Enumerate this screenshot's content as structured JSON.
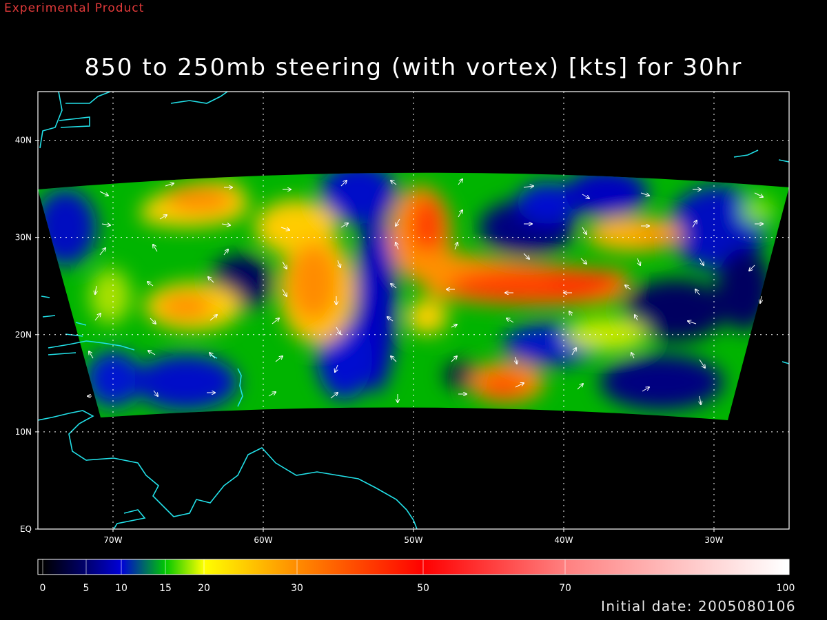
{
  "header": {
    "product_tag": "Experimental Product"
  },
  "map": {
    "title": "850 to 250mb steering (with vortex) [kts] for 30hr",
    "lat_labels": [
      "40N",
      "30N",
      "20N",
      "10N",
      "EQ"
    ],
    "lon_labels": [
      "70W",
      "60W",
      "50W",
      "40W",
      "30W"
    ],
    "lat_values": [
      40,
      30,
      20,
      10,
      0
    ],
    "lon_values": [
      -70,
      -60,
      -50,
      -40,
      -30
    ],
    "extent": {
      "lon_min": -75,
      "lon_max": -25,
      "lat_min": 0,
      "lat_max": 45
    },
    "grid": true,
    "coastline_color": "#22e0e8"
  },
  "colorbar": {
    "tick_labels": [
      "0",
      "5",
      "10",
      "15",
      "20",
      "30",
      "50",
      "70",
      "100"
    ],
    "tick_values": [
      0,
      5,
      10,
      15,
      20,
      30,
      50,
      70,
      100
    ],
    "colors": [
      "#000000",
      "#00006e",
      "#0000d8",
      "#00c800",
      "#ffff00",
      "#ff8c00",
      "#ff0000",
      "#ff8080",
      "#ffffff"
    ]
  },
  "footer": {
    "initial_date": "Initial date: 2005080106"
  }
}
